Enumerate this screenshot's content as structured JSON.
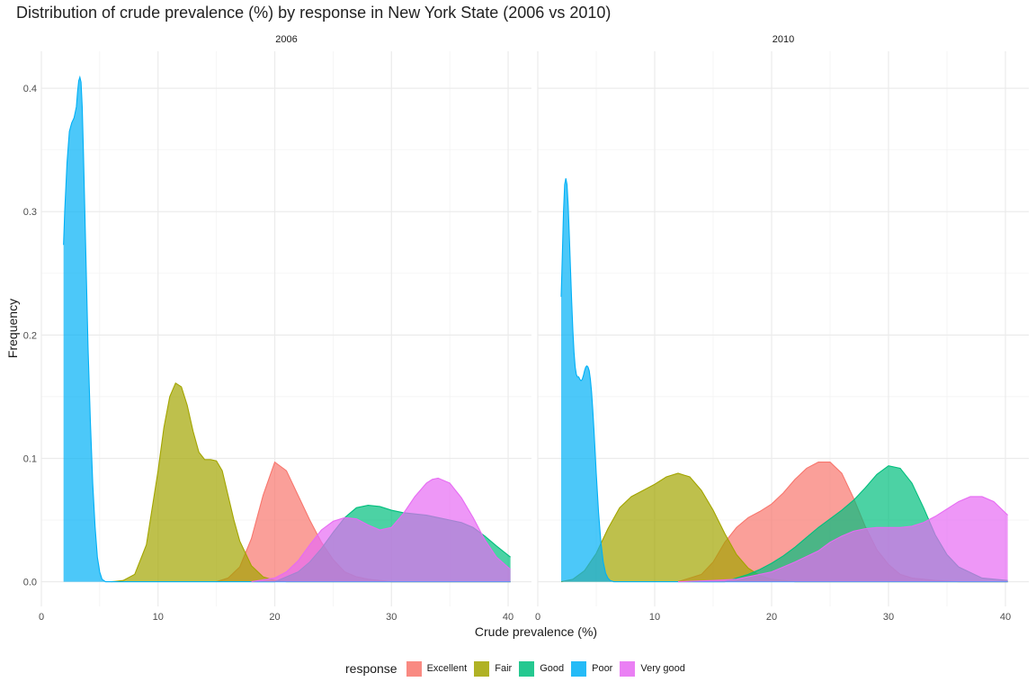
{
  "chart_data": {
    "type": "area",
    "subtype": "density",
    "title": "Distribution of crude prevalence (%) by response in New York State (2006 vs 2010)",
    "xlabel": "Crude prevalence (%)",
    "ylabel": "Frequency",
    "xlim": [
      0,
      42
    ],
    "ylim": [
      -0.02,
      0.43
    ],
    "x_ticks": [
      "0",
      "10",
      "20",
      "30",
      "40"
    ],
    "y_ticks": [
      "0.0",
      "0.1",
      "0.2",
      "0.3",
      "0.4"
    ],
    "grid": true,
    "legend": {
      "title": "response",
      "position": "bottom",
      "entries": [
        "Excellent",
        "Fair",
        "Good",
        "Poor",
        "Very good"
      ]
    },
    "colors": {
      "Excellent": "#F8766D",
      "Fair": "#A3A500",
      "Good": "#00BF7D",
      "Poor": "#00B0F6",
      "Very good": "#E76BF3"
    },
    "panels": [
      {
        "label": "2006",
        "series": [
          {
            "name": "Excellent",
            "x": [
              15,
              16,
              17,
              18,
              19,
              20,
              21,
              22,
              23,
              24,
              25,
              26,
              27,
              28,
              30,
              32,
              34,
              36,
              38,
              40.2
            ],
            "y": [
              0.0,
              0.003,
              0.012,
              0.035,
              0.07,
              0.097,
              0.09,
              0.07,
              0.05,
              0.032,
              0.018,
              0.008,
              0.004,
              0.002,
              0.0,
              0.0,
              0.0,
              0.0,
              0.0,
              0.0
            ]
          },
          {
            "name": "Fair",
            "x": [
              6,
              7,
              8,
              9,
              10,
              10.5,
              11,
              11.5,
              12,
              12.5,
              13,
              13.5,
              14,
              14.5,
              15,
              15.5,
              16,
              16.5,
              17,
              18,
              19,
              20,
              21,
              22,
              25,
              30,
              40.2
            ],
            "y": [
              0.0,
              0.001,
              0.006,
              0.03,
              0.09,
              0.125,
              0.15,
              0.161,
              0.158,
              0.143,
              0.122,
              0.105,
              0.099,
              0.099,
              0.098,
              0.09,
              0.07,
              0.05,
              0.033,
              0.013,
              0.004,
              0.001,
              0.0,
              0.0,
              0.0,
              0.0,
              0.0
            ]
          },
          {
            "name": "Good",
            "x": [
              18,
              20,
              22,
              23,
              24,
              25,
              26,
              27,
              28,
              29,
              30,
              31,
              32,
              33,
              34,
              35,
              36,
              37,
              38,
              39,
              40.2
            ],
            "y": [
              0.0,
              0.0,
              0.008,
              0.016,
              0.027,
              0.04,
              0.052,
              0.06,
              0.062,
              0.061,
              0.058,
              0.056,
              0.055,
              0.054,
              0.052,
              0.05,
              0.048,
              0.044,
              0.037,
              0.029,
              0.02
            ]
          },
          {
            "name": "Poor",
            "x": [
              1.9,
              2.0,
              2.2,
              2.4,
              2.6,
              2.8,
              3.0,
              3.1,
              3.2,
              3.3,
              3.4,
              3.5,
              3.6,
              3.7,
              3.8,
              3.9,
              4.0,
              4.2,
              4.4,
              4.6,
              4.8,
              5.0,
              5.2,
              5.5,
              6.0,
              8,
              10,
              15,
              20,
              30,
              40.2
            ],
            "y": [
              0.273,
              0.3,
              0.34,
              0.365,
              0.372,
              0.376,
              0.385,
              0.397,
              0.406,
              0.409,
              0.405,
              0.385,
              0.35,
              0.31,
              0.27,
              0.23,
              0.19,
              0.13,
              0.08,
              0.045,
              0.02,
              0.008,
              0.002,
              0.0,
              0.0,
              0.0,
              0.0,
              0.0,
              0.0,
              0.0,
              0.0
            ]
          },
          {
            "name": "Very good",
            "x": [
              18,
              20,
              21,
              22,
              23,
              24,
              25,
              26,
              27,
              28,
              29,
              30,
              31,
              32,
              33,
              33.5,
              34,
              35,
              36,
              37,
              38,
              39,
              40.2
            ],
            "y": [
              0.0,
              0.003,
              0.008,
              0.017,
              0.03,
              0.042,
              0.049,
              0.052,
              0.051,
              0.046,
              0.042,
              0.044,
              0.055,
              0.069,
              0.08,
              0.083,
              0.084,
              0.08,
              0.068,
              0.052,
              0.034,
              0.02,
              0.01
            ]
          }
        ]
      },
      {
        "label": "2010",
        "series": [
          {
            "name": "Excellent",
            "x": [
              12,
              14,
              15,
              16,
              17,
              18,
              19,
              20,
              21,
              22,
              23,
              24,
              25,
              26,
              27,
              28,
              29,
              30,
              31,
              32,
              34,
              36,
              38,
              40.2
            ],
            "y": [
              0.0,
              0.006,
              0.016,
              0.032,
              0.044,
              0.052,
              0.057,
              0.063,
              0.072,
              0.083,
              0.092,
              0.097,
              0.097,
              0.088,
              0.068,
              0.045,
              0.026,
              0.014,
              0.006,
              0.003,
              0.001,
              0.0,
              0.0,
              0.0
            ]
          },
          {
            "name": "Fair",
            "x": [
              2,
              3,
              4,
              5,
              6,
              7,
              8,
              9,
              10,
              11,
              12,
              13,
              14,
              15,
              16,
              17,
              18,
              19,
              20,
              21,
              22,
              25,
              30,
              40.2
            ],
            "y": [
              0.0,
              0.002,
              0.009,
              0.023,
              0.043,
              0.06,
              0.069,
              0.074,
              0.079,
              0.085,
              0.088,
              0.085,
              0.074,
              0.058,
              0.039,
              0.022,
              0.011,
              0.005,
              0.002,
              0.001,
              0.0,
              0.0,
              0.0,
              0.0
            ]
          },
          {
            "name": "Good",
            "x": [
              12,
              16,
              18,
              19,
              20,
              21,
              22,
              23,
              24,
              25,
              26,
              27,
              28,
              29,
              30,
              31,
              32,
              33,
              34,
              35,
              36,
              38,
              40.2
            ],
            "y": [
              0.0,
              0.0,
              0.006,
              0.01,
              0.015,
              0.021,
              0.028,
              0.036,
              0.044,
              0.051,
              0.058,
              0.066,
              0.076,
              0.087,
              0.094,
              0.092,
              0.08,
              0.06,
              0.038,
              0.022,
              0.012,
              0.003,
              0.001
            ]
          },
          {
            "name": "Poor",
            "x": [
              2.0,
              2.1,
              2.2,
              2.3,
              2.4,
              2.5,
              2.6,
              2.7,
              2.8,
              2.9,
              3.0,
              3.1,
              3.2,
              3.3,
              3.4,
              3.5,
              3.6,
              3.7,
              3.8,
              3.9,
              4.0,
              4.1,
              4.2,
              4.3,
              4.4,
              4.5,
              4.6,
              4.7,
              4.8,
              4.9,
              5.0,
              5.2,
              5.4,
              5.6,
              5.8,
              6.0,
              6.2,
              6.5,
              7.0,
              10,
              20,
              30,
              40.2
            ],
            "y": [
              0.231,
              0.265,
              0.3,
              0.322,
              0.327,
              0.322,
              0.305,
              0.28,
              0.253,
              0.227,
              0.204,
              0.186,
              0.174,
              0.168,
              0.166,
              0.166,
              0.164,
              0.163,
              0.164,
              0.167,
              0.171,
              0.174,
              0.175,
              0.174,
              0.171,
              0.164,
              0.154,
              0.14,
              0.124,
              0.106,
              0.088,
              0.056,
              0.032,
              0.016,
              0.007,
              0.003,
              0.001,
              0.0,
              0.0,
              0.0,
              0.0,
              0.0,
              0.0
            ]
          },
          {
            "name": "Very good",
            "x": [
              12,
              15,
              17,
              18,
              20,
              22,
              24,
              25,
              26,
              27,
              28,
              29,
              30,
              31,
              32,
              33,
              34,
              35,
              36,
              37,
              38,
              39,
              40.2
            ],
            "y": [
              0.0,
              0.001,
              0.002,
              0.004,
              0.008,
              0.016,
              0.025,
              0.032,
              0.037,
              0.041,
              0.043,
              0.044,
              0.044,
              0.044,
              0.045,
              0.048,
              0.053,
              0.059,
              0.065,
              0.069,
              0.069,
              0.065,
              0.054
            ]
          }
        ]
      }
    ]
  }
}
